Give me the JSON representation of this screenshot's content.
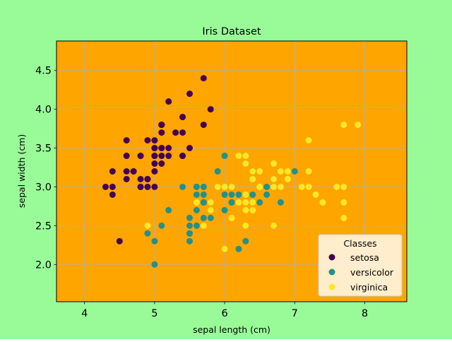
{
  "figure": {
    "background": "#98FB98"
  },
  "chart_data": {
    "type": "scatter",
    "title": "Iris Dataset",
    "xlabel": "sepal length (cm)",
    "ylabel": "sepal width (cm)",
    "xlim": [
      3.6,
      8.6
    ],
    "ylim": [
      1.52,
      4.88
    ],
    "xticks": [
      "4",
      "5",
      "6",
      "7",
      "8"
    ],
    "yticks": [
      "2.0",
      "2.5",
      "3.0",
      "3.5",
      "4.0",
      "4.5"
    ],
    "grid": true,
    "plot_background": "#FFA500",
    "legend": {
      "title": "Classes",
      "position": "lower-right"
    },
    "series": [
      {
        "name": "setosa",
        "color": "#440154",
        "points": [
          [
            5.1,
            3.5
          ],
          [
            4.9,
            3.0
          ],
          [
            4.7,
            3.2
          ],
          [
            4.6,
            3.1
          ],
          [
            5.0,
            3.6
          ],
          [
            5.4,
            3.9
          ],
          [
            4.6,
            3.4
          ],
          [
            5.0,
            3.4
          ],
          [
            4.4,
            2.9
          ],
          [
            4.9,
            3.1
          ],
          [
            5.4,
            3.7
          ],
          [
            4.8,
            3.4
          ],
          [
            4.8,
            3.0
          ],
          [
            4.3,
            3.0
          ],
          [
            5.8,
            4.0
          ],
          [
            5.7,
            4.4
          ],
          [
            5.4,
            3.9
          ],
          [
            5.1,
            3.5
          ],
          [
            5.7,
            3.8
          ],
          [
            5.1,
            3.8
          ],
          [
            5.4,
            3.4
          ],
          [
            5.1,
            3.7
          ],
          [
            4.6,
            3.6
          ],
          [
            5.1,
            3.3
          ],
          [
            4.8,
            3.4
          ],
          [
            5.0,
            3.0
          ],
          [
            5.0,
            3.4
          ],
          [
            5.2,
            3.5
          ],
          [
            5.2,
            3.4
          ],
          [
            4.7,
            3.2
          ],
          [
            4.8,
            3.1
          ],
          [
            5.4,
            3.4
          ],
          [
            5.2,
            4.1
          ],
          [
            5.5,
            4.2
          ],
          [
            4.9,
            3.1
          ],
          [
            5.0,
            3.2
          ],
          [
            5.5,
            3.5
          ],
          [
            4.9,
            3.6
          ],
          [
            4.4,
            3.0
          ],
          [
            5.1,
            3.4
          ],
          [
            5.0,
            3.5
          ],
          [
            4.5,
            2.3
          ],
          [
            4.4,
            3.2
          ],
          [
            5.0,
            3.5
          ],
          [
            5.1,
            3.8
          ],
          [
            4.8,
            3.0
          ],
          [
            5.1,
            3.8
          ],
          [
            4.6,
            3.2
          ],
          [
            5.3,
            3.7
          ],
          [
            5.0,
            3.3
          ]
        ]
      },
      {
        "name": "versicolor",
        "color": "#21918C",
        "points": [
          [
            7.0,
            3.2
          ],
          [
            6.4,
            3.2
          ],
          [
            6.9,
            3.1
          ],
          [
            5.5,
            2.3
          ],
          [
            6.5,
            2.8
          ],
          [
            5.7,
            2.8
          ],
          [
            6.3,
            3.3
          ],
          [
            4.9,
            2.4
          ],
          [
            6.6,
            2.9
          ],
          [
            5.2,
            2.7
          ],
          [
            5.0,
            2.0
          ],
          [
            5.9,
            3.0
          ],
          [
            6.0,
            2.2
          ],
          [
            6.1,
            2.9
          ],
          [
            5.6,
            2.9
          ],
          [
            6.7,
            3.1
          ],
          [
            5.6,
            3.0
          ],
          [
            5.8,
            2.7
          ],
          [
            6.2,
            2.2
          ],
          [
            5.6,
            2.5
          ],
          [
            5.9,
            3.2
          ],
          [
            6.1,
            2.8
          ],
          [
            6.3,
            2.5
          ],
          [
            6.1,
            2.8
          ],
          [
            6.4,
            2.9
          ],
          [
            6.6,
            3.0
          ],
          [
            6.8,
            2.8
          ],
          [
            6.7,
            3.0
          ],
          [
            6.0,
            2.9
          ],
          [
            5.7,
            2.6
          ],
          [
            5.5,
            2.4
          ],
          [
            5.5,
            2.4
          ],
          [
            5.8,
            2.7
          ],
          [
            6.0,
            2.7
          ],
          [
            5.4,
            3.0
          ],
          [
            6.0,
            3.4
          ],
          [
            6.7,
            3.1
          ],
          [
            6.3,
            2.3
          ],
          [
            5.6,
            3.0
          ],
          [
            5.5,
            2.5
          ],
          [
            5.5,
            2.6
          ],
          [
            6.1,
            3.0
          ],
          [
            5.8,
            2.6
          ],
          [
            5.0,
            2.3
          ],
          [
            5.6,
            2.7
          ],
          [
            5.7,
            3.0
          ],
          [
            5.7,
            2.9
          ],
          [
            6.2,
            2.9
          ],
          [
            5.1,
            2.5
          ],
          [
            5.7,
            2.8
          ]
        ]
      },
      {
        "name": "virginica",
        "color": "#FDE725",
        "points": [
          [
            6.3,
            3.3
          ],
          [
            5.8,
            2.7
          ],
          [
            7.1,
            3.0
          ],
          [
            6.3,
            2.9
          ],
          [
            6.5,
            3.0
          ],
          [
            7.6,
            3.0
          ],
          [
            4.9,
            2.5
          ],
          [
            7.3,
            2.9
          ],
          [
            6.7,
            2.5
          ],
          [
            7.2,
            3.6
          ],
          [
            6.5,
            3.2
          ],
          [
            6.4,
            2.7
          ],
          [
            6.8,
            3.0
          ],
          [
            5.7,
            2.5
          ],
          [
            5.8,
            2.8
          ],
          [
            6.4,
            3.2
          ],
          [
            6.5,
            3.0
          ],
          [
            7.7,
            3.8
          ],
          [
            7.7,
            2.6
          ],
          [
            6.0,
            2.2
          ],
          [
            6.9,
            3.2
          ],
          [
            5.6,
            2.8
          ],
          [
            7.7,
            2.8
          ],
          [
            6.3,
            2.7
          ],
          [
            6.7,
            3.3
          ],
          [
            7.2,
            3.2
          ],
          [
            6.2,
            2.8
          ],
          [
            6.1,
            3.0
          ],
          [
            6.4,
            2.8
          ],
          [
            7.2,
            3.0
          ],
          [
            7.4,
            2.8
          ],
          [
            7.9,
            3.8
          ],
          [
            6.4,
            2.8
          ],
          [
            6.3,
            2.8
          ],
          [
            6.1,
            2.6
          ],
          [
            7.7,
            3.0
          ],
          [
            6.3,
            3.4
          ],
          [
            6.4,
            3.1
          ],
          [
            6.0,
            3.0
          ],
          [
            6.9,
            3.1
          ],
          [
            6.7,
            3.1
          ],
          [
            6.9,
            3.1
          ],
          [
            5.8,
            2.7
          ],
          [
            6.8,
            3.2
          ],
          [
            6.7,
            3.3
          ],
          [
            6.7,
            3.0
          ],
          [
            6.3,
            2.5
          ],
          [
            6.5,
            3.0
          ],
          [
            6.2,
            3.4
          ],
          [
            5.9,
            3.0
          ]
        ]
      }
    ]
  }
}
